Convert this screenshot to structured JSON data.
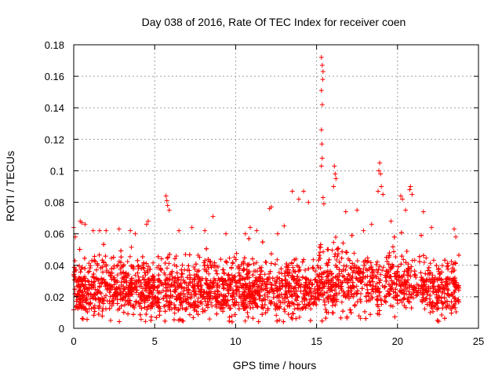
{
  "chart_data": {
    "type": "scatter",
    "title": "Day 038 of 2016, Rate Of TEC Index for receiver coen",
    "xlabel": "GPS time / hours",
    "ylabel": "ROTI / TECUs",
    "xlim": [
      0,
      25
    ],
    "ylim": [
      0,
      0.18
    ],
    "xticks": [
      0,
      5,
      10,
      15,
      20,
      25
    ],
    "xtick_labels": [
      "0",
      "5",
      "10",
      "15",
      "20",
      "25"
    ],
    "yticks": [
      0,
      0.02,
      0.04,
      0.06,
      0.08,
      0.1,
      0.12,
      0.14,
      0.16,
      0.18
    ],
    "ytick_labels": [
      "0",
      "0.02",
      "0.04",
      "0.06",
      "0.08",
      "0.1",
      "0.12",
      "0.14",
      "0.16",
      "0.18"
    ],
    "grid": true,
    "marker": "plus",
    "color": "#ff0000",
    "series": [
      {
        "points": [
          [
            15.3,
            0.172
          ],
          [
            15.35,
            0.167
          ],
          [
            15.4,
            0.163
          ],
          [
            15.38,
            0.158
          ],
          [
            15.3,
            0.151
          ],
          [
            15.35,
            0.142
          ],
          [
            15.3,
            0.126
          ],
          [
            15.33,
            0.117
          ],
          [
            15.35,
            0.108
          ],
          [
            15.3,
            0.103
          ],
          [
            15.4,
            0.083
          ],
          [
            15.45,
            0.079
          ],
          [
            18.9,
            0.105
          ],
          [
            18.85,
            0.1
          ],
          [
            18.95,
            0.098
          ],
          [
            19.0,
            0.09
          ],
          [
            18.8,
            0.087
          ],
          [
            19.1,
            0.085
          ],
          [
            16.1,
            0.103
          ],
          [
            16.15,
            0.098
          ],
          [
            16.2,
            0.095
          ],
          [
            16.05,
            0.09
          ],
          [
            13.5,
            0.087
          ],
          [
            14.2,
            0.087
          ],
          [
            13.9,
            0.082
          ],
          [
            14.5,
            0.08
          ],
          [
            20.8,
            0.09
          ],
          [
            20.75,
            0.088
          ],
          [
            20.9,
            0.085
          ],
          [
            20.2,
            0.084
          ],
          [
            20.3,
            0.082
          ],
          [
            20.5,
            0.075
          ],
          [
            5.7,
            0.084
          ],
          [
            5.75,
            0.081
          ],
          [
            5.8,
            0.078
          ],
          [
            5.9,
            0.075
          ],
          [
            12.2,
            0.077
          ],
          [
            12.1,
            0.076
          ],
          [
            17.5,
            0.075
          ],
          [
            16.8,
            0.074
          ],
          [
            21.6,
            0.074
          ],
          [
            22.1,
            0.064
          ],
          [
            8.6,
            0.071
          ],
          [
            4.6,
            0.068
          ],
          [
            4.5,
            0.066
          ],
          [
            0.4,
            0.068
          ],
          [
            0.5,
            0.067
          ],
          [
            0.7,
            0.066
          ],
          [
            1.2,
            0.062
          ],
          [
            1.6,
            0.062
          ],
          [
            2.0,
            0.062
          ],
          [
            2.8,
            0.063
          ],
          [
            3.5,
            0.062
          ],
          [
            3.8,
            0.06
          ],
          [
            6.5,
            0.062
          ],
          [
            7.3,
            0.064
          ],
          [
            8.1,
            0.062
          ],
          [
            9.4,
            0.06
          ],
          [
            10.6,
            0.06
          ],
          [
            11.3,
            0.062
          ],
          [
            10.9,
            0.064
          ],
          [
            12.6,
            0.06
          ],
          [
            13.0,
            0.065
          ],
          [
            23.5,
            0.063
          ],
          [
            23.6,
            0.058
          ],
          [
            0.0,
            0.064
          ],
          [
            0.1,
            0.058
          ],
          [
            19.6,
            0.068
          ],
          [
            18.4,
            0.066
          ],
          [
            17.9,
            0.062
          ]
        ]
      }
    ]
  }
}
